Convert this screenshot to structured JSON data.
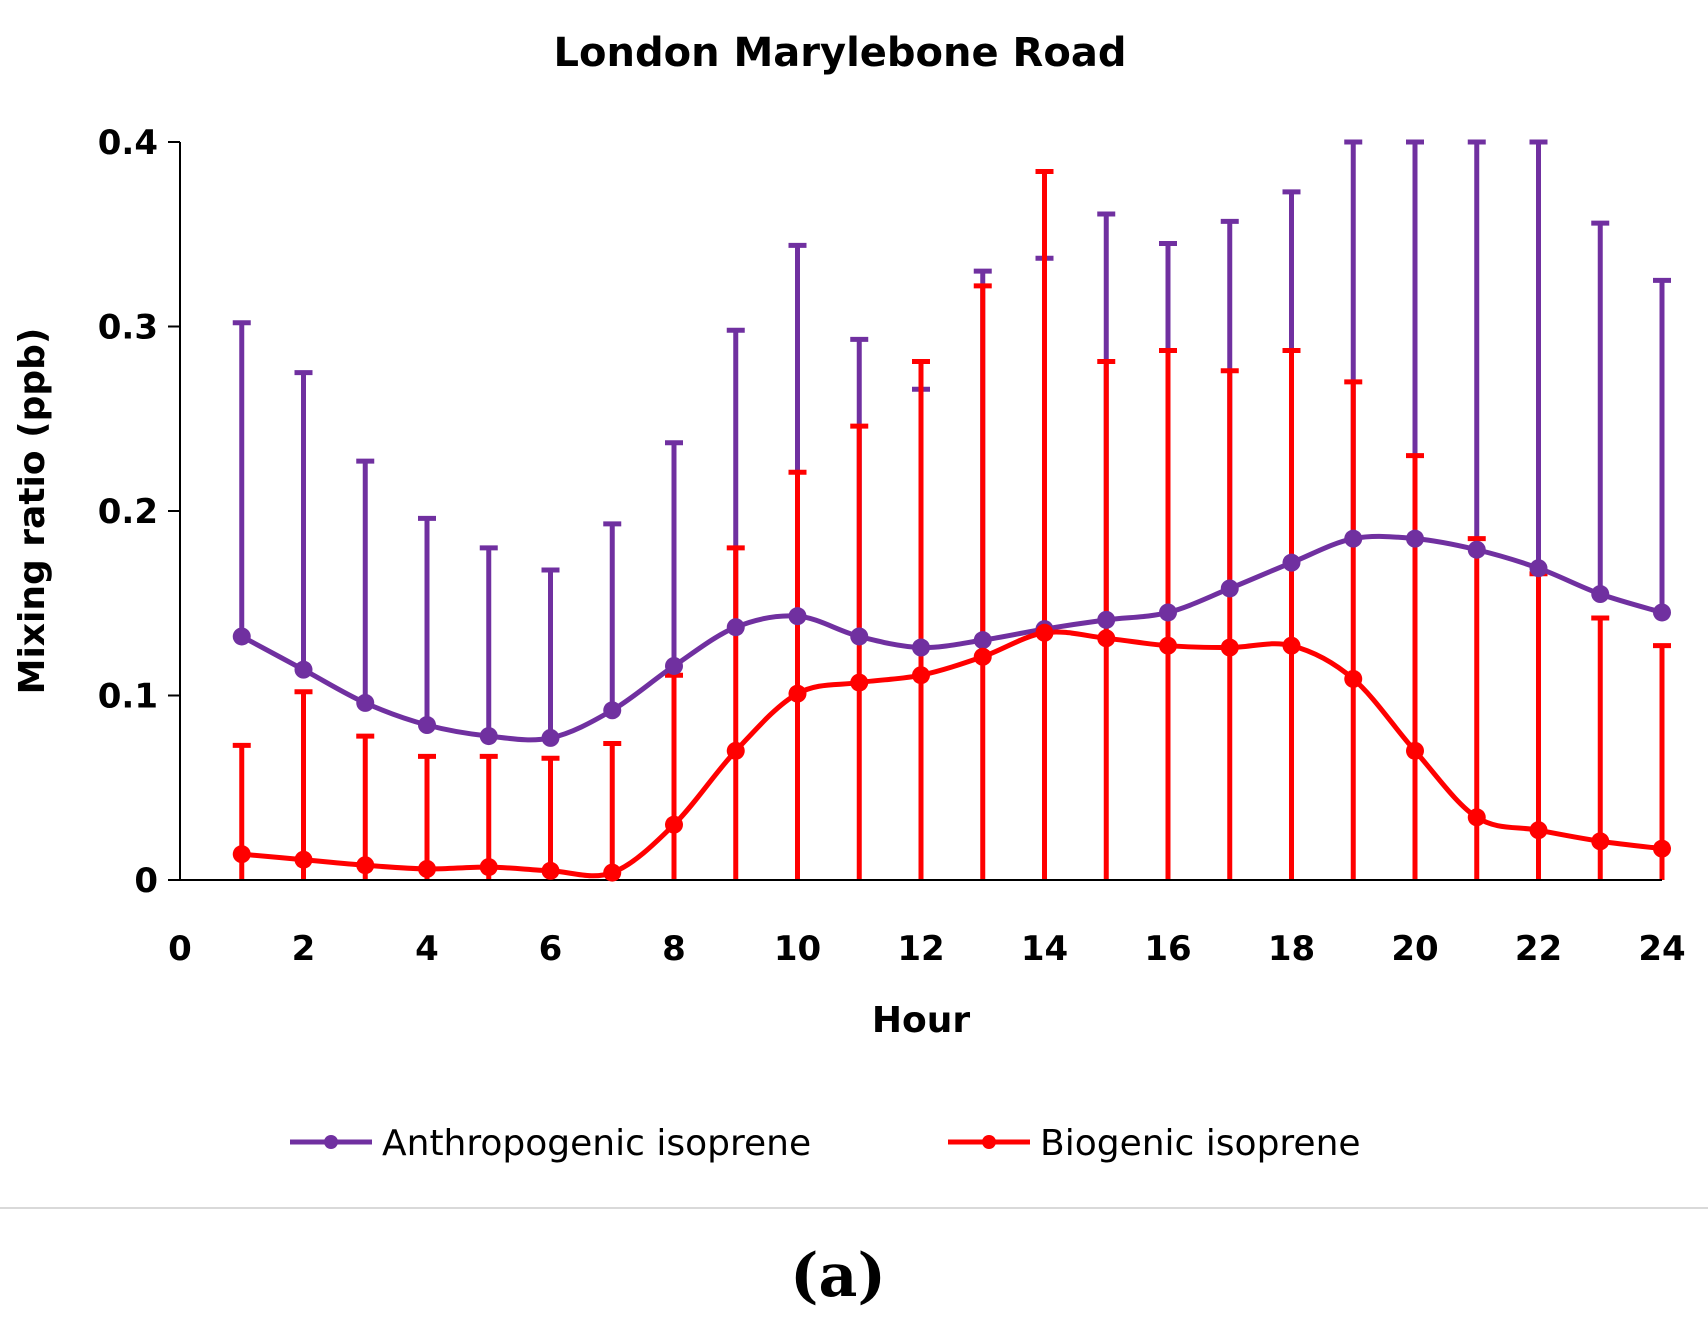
{
  "chart_data": {
    "type": "line",
    "title": "London Marylebone Road",
    "xlabel": "Hour",
    "ylabel": "Mixing ratio (ppb)",
    "xlim": [
      0,
      24
    ],
    "ylim": [
      0,
      0.4
    ],
    "x_ticks": [
      0,
      2,
      4,
      6,
      8,
      10,
      12,
      14,
      16,
      18,
      20,
      22,
      24
    ],
    "x_tick_labels": [
      "0",
      "2",
      "4",
      "6",
      "8",
      "10",
      "12",
      "14",
      "16",
      "18",
      "20",
      "22",
      "24"
    ],
    "y_ticks": [
      0,
      0.1,
      0.2,
      0.3,
      0.4
    ],
    "y_tick_labels": [
      "0",
      "0.1",
      "0.2",
      "0.3",
      "0.4"
    ],
    "grid": false,
    "legend_position": "bottom",
    "x": [
      1,
      2,
      3,
      4,
      5,
      6,
      7,
      8,
      9,
      10,
      11,
      12,
      13,
      14,
      15,
      16,
      17,
      18,
      19,
      20,
      21,
      22,
      23,
      24
    ],
    "series": [
      {
        "name": "Anthropogenic isoprene",
        "color": "#7030A0",
        "values": [
          0.132,
          0.114,
          0.096,
          0.084,
          0.078,
          0.077,
          0.092,
          0.116,
          0.137,
          0.143,
          0.132,
          0.126,
          0.13,
          0.136,
          0.141,
          0.145,
          0.158,
          0.172,
          0.185,
          0.185,
          0.179,
          0.169,
          0.155,
          0.145
        ],
        "error_upper": [
          0.302,
          0.275,
          0.227,
          0.196,
          0.18,
          0.168,
          0.193,
          0.237,
          0.298,
          0.344,
          0.293,
          0.266,
          0.33,
          0.337,
          0.361,
          0.345,
          0.357,
          0.373,
          0.4,
          0.4,
          0.4,
          0.4,
          0.356,
          0.325
        ]
      },
      {
        "name": "Biogenic isoprene",
        "color": "#FF0000",
        "values": [
          0.014,
          0.011,
          0.008,
          0.006,
          0.007,
          0.005,
          0.004,
          0.03,
          0.07,
          0.101,
          0.107,
          0.111,
          0.121,
          0.134,
          0.131,
          0.127,
          0.126,
          0.127,
          0.109,
          0.07,
          0.034,
          0.027,
          0.021,
          0.017
        ],
        "error_upper": [
          0.073,
          0.102,
          0.078,
          0.067,
          0.067,
          0.066,
          0.074,
          0.111,
          0.18,
          0.221,
          0.246,
          0.281,
          0.322,
          0.384,
          0.281,
          0.287,
          0.276,
          0.287,
          0.27,
          0.23,
          0.185,
          0.166,
          0.142,
          0.127
        ]
      }
    ]
  },
  "caption": "(a)"
}
